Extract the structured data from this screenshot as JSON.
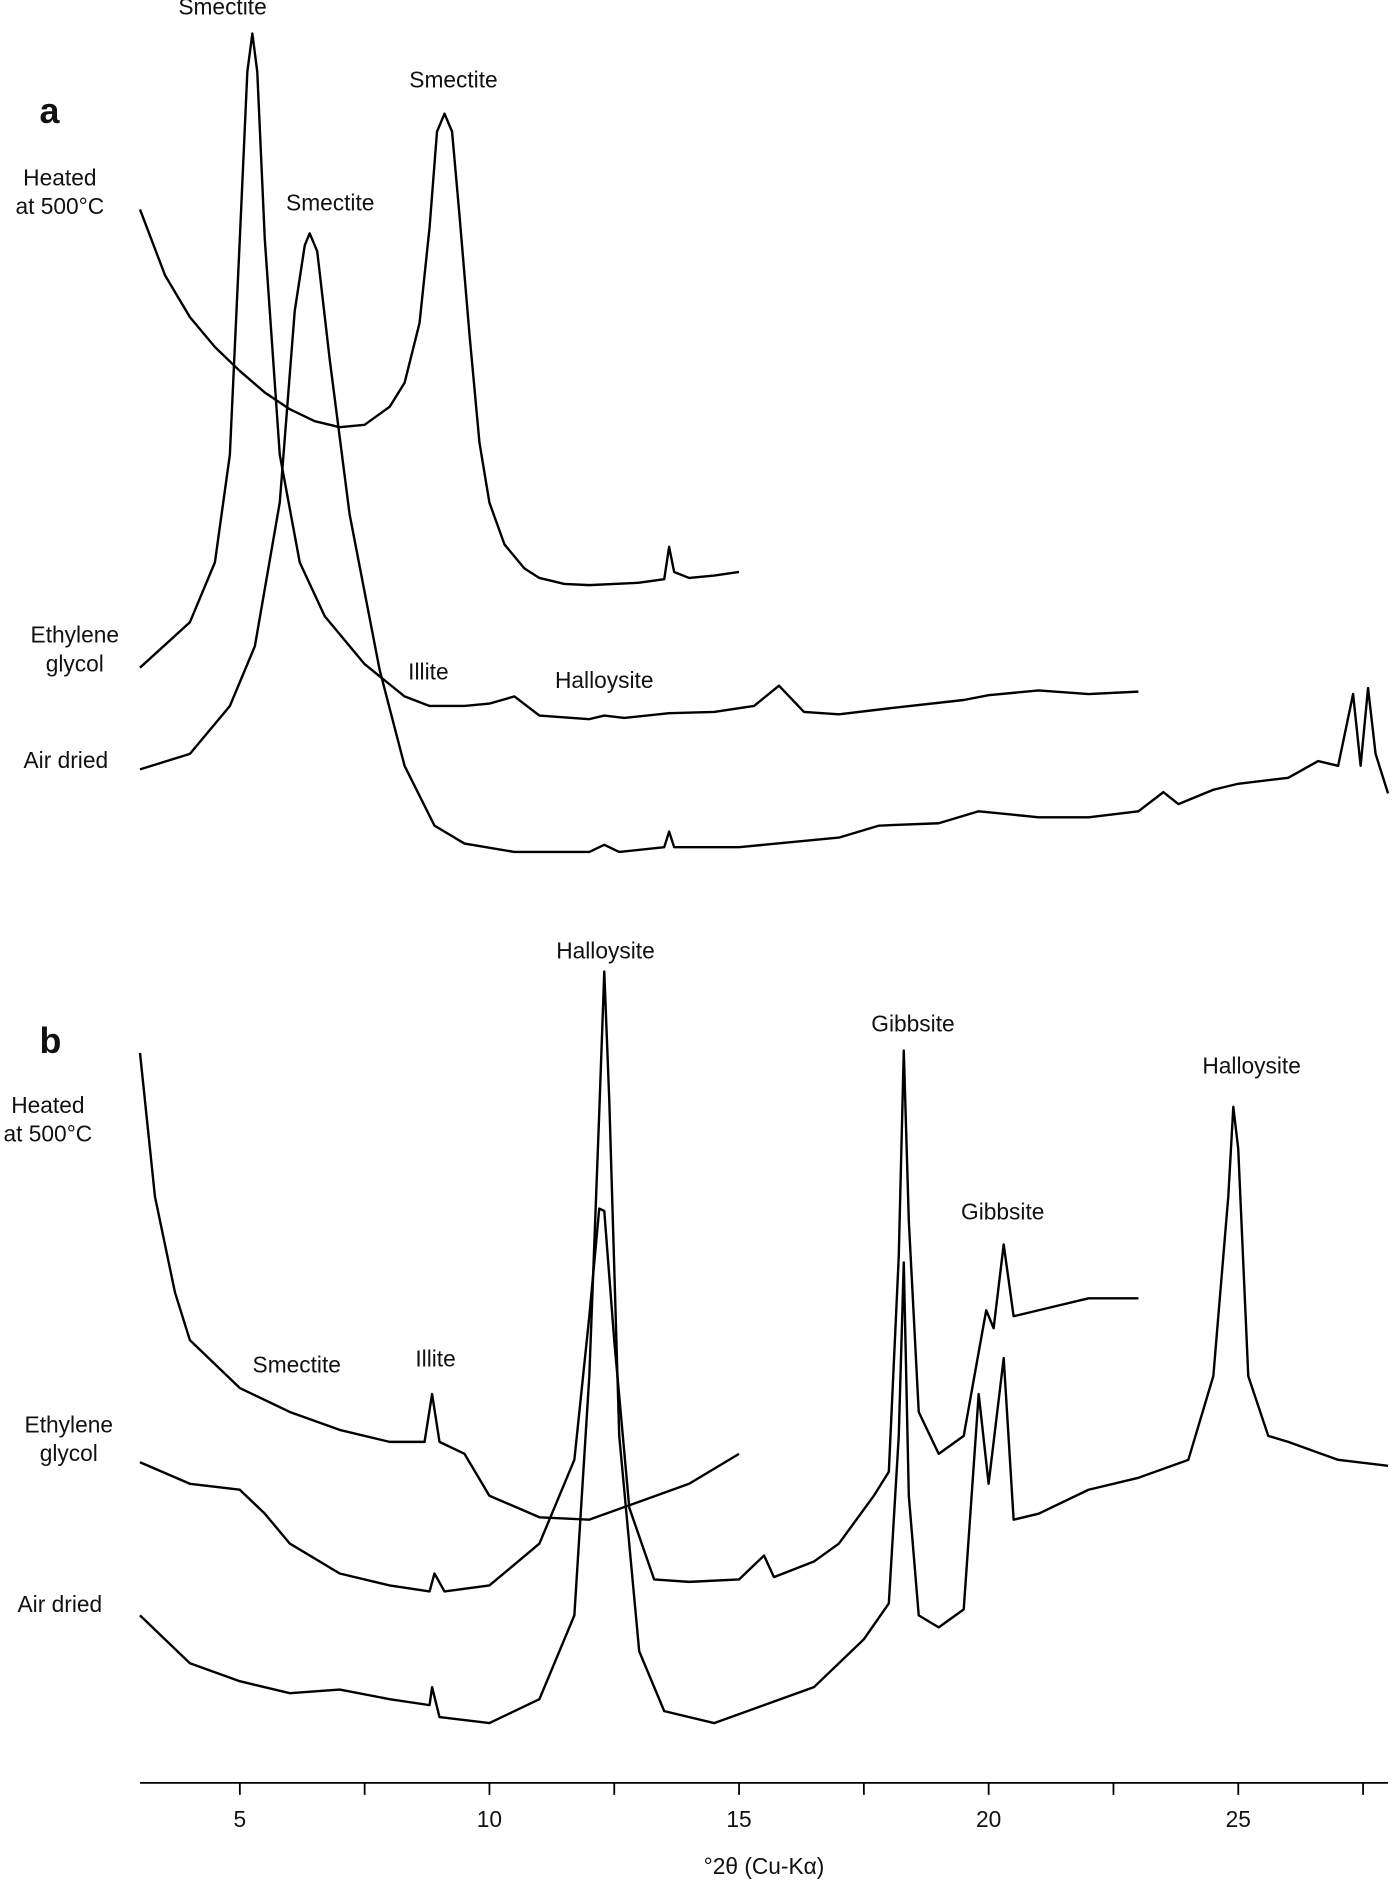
{
  "chart_data": [
    {
      "type": "line",
      "panel": "a",
      "xlim": [
        3,
        28
      ],
      "ylim": [
        0,
        700
      ],
      "annotations": [
        "Smectite",
        "Smectite",
        "Smectite",
        "Illite",
        "Halloysite"
      ],
      "series": [
        {
          "name": "Heated at 500°C",
          "color": "#000000",
          "x": [
            3,
            3.5,
            4,
            4.5,
            5,
            5.5,
            6,
            6.5,
            7,
            7.5,
            8,
            8.3,
            8.6,
            8.8,
            8.95,
            9.1,
            9.25,
            9.4,
            9.6,
            9.8,
            10,
            10.3,
            10.7,
            11,
            11.5,
            12,
            12.5,
            13,
            13.5,
            13.6,
            13.7,
            14,
            14.5,
            15
          ],
          "values": [
            545,
            490,
            455,
            430,
            410,
            392,
            378,
            368,
            363,
            365,
            380,
            400,
            450,
            530,
            610,
            625,
            610,
            540,
            440,
            350,
            300,
            265,
            245,
            237,
            232,
            231,
            232,
            233,
            236,
            263,
            242,
            237,
            239,
            242
          ]
        },
        {
          "name": "Ethylene glycol",
          "color": "#000000",
          "x": [
            3,
            4,
            4.5,
            4.8,
            5.0,
            5.15,
            5.25,
            5.35,
            5.5,
            5.8,
            6.2,
            6.7,
            7.5,
            8.3,
            8.8,
            9.5,
            10,
            10.5,
            11,
            12,
            12.3,
            12.7,
            13.6,
            14.5,
            15.3,
            15.8,
            16.3,
            17,
            18,
            19.5,
            20,
            21,
            22,
            23
          ],
          "values": [
            162,
            200,
            250,
            340,
            520,
            660,
            692,
            660,
            520,
            340,
            250,
            205,
            165,
            138,
            130,
            130,
            132,
            138,
            122,
            119,
            122,
            120,
            124,
            125,
            130,
            147,
            125,
            123,
            128,
            135,
            139,
            143,
            140,
            142
          ]
        },
        {
          "name": "Air dried",
          "color": "#000000",
          "x": [
            3,
            4,
            4.8,
            5.3,
            5.8,
            6.1,
            6.3,
            6.4,
            6.55,
            6.8,
            7.2,
            7.8,
            8.3,
            8.9,
            9.5,
            10.5,
            12,
            12.3,
            12.6,
            13.5,
            13.6,
            13.7,
            15,
            17,
            17.8,
            19,
            19.8,
            21,
            22,
            23,
            23.5,
            23.8,
            24.5,
            25,
            26,
            26.6,
            27,
            27.3,
            27.45,
            27.6,
            27.75,
            28
          ],
          "values": [
            77,
            90,
            130,
            180,
            300,
            460,
            515,
            525,
            510,
            420,
            290,
            160,
            80,
            30,
            15,
            8,
            8,
            14,
            8,
            12,
            25,
            12,
            12,
            20,
            30,
            32,
            42,
            37,
            37,
            42,
            58,
            48,
            60,
            65,
            70,
            84,
            80,
            140,
            80,
            145,
            90,
            57
          ]
        }
      ]
    },
    {
      "type": "line",
      "panel": "b",
      "xlim": [
        3,
        28
      ],
      "ylim": [
        0,
        650
      ],
      "xticks": [
        5,
        10,
        15,
        20,
        25
      ],
      "minor_xticks": [
        7.5,
        12.5,
        17.5,
        22.5,
        27.5
      ],
      "xlabel": "°2θ (Cu-Kα)",
      "annotations": [
        "Halloysite",
        "Gibbsite",
        "Halloysite",
        "Gibbsite",
        "Smectite",
        "Illite"
      ],
      "series": [
        {
          "name": "Heated at 500°C",
          "color": "#000000",
          "x": [
            3,
            3.3,
            3.7,
            4,
            4.5,
            5,
            6,
            7,
            8,
            8.7,
            8.85,
            9,
            9.5,
            10,
            11,
            12,
            13,
            14,
            15
          ],
          "values": [
            570,
            450,
            370,
            330,
            310,
            290,
            270,
            255,
            245,
            245,
            285,
            245,
            235,
            200,
            182,
            180,
            195,
            210,
            235
          ]
        },
        {
          "name": "Ethylene glycol",
          "color": "#000000",
          "x": [
            3,
            4,
            5,
            5.5,
            6,
            7,
            8,
            8.8,
            8.9,
            9.1,
            10,
            11,
            11.7,
            12.0,
            12.2,
            12.3,
            12.5,
            12.8,
            13.3,
            14,
            15,
            15.5,
            15.7,
            16.5,
            17,
            17.7,
            18,
            18.2,
            18.3,
            18.4,
            18.6,
            19,
            19.5,
            19.8,
            19.95,
            20.1,
            20.3,
            20.5,
            21,
            22,
            23
          ],
          "values": [
            228,
            210,
            205,
            185,
            160,
            135,
            125,
            120,
            135,
            120,
            125,
            160,
            230,
            350,
            440,
            438,
            330,
            190,
            130,
            128,
            130,
            150,
            132,
            145,
            160,
            200,
            220,
            400,
            572,
            430,
            270,
            235,
            250,
            320,
            355,
            340,
            410,
            350,
            355,
            365,
            365
          ]
        },
        {
          "name": "Air dried",
          "color": "#000000",
          "x": [
            3,
            4,
            5,
            6,
            7,
            8,
            8.8,
            8.85,
            9,
            10,
            11,
            11.7,
            12.0,
            12.2,
            12.3,
            12.4,
            12.6,
            13,
            13.5,
            14.5,
            15.5,
            16.5,
            17.5,
            18,
            18.2,
            18.3,
            18.4,
            18.6,
            19,
            19.5,
            19.8,
            20,
            20.3,
            20.5,
            21,
            22,
            23,
            24,
            24.5,
            24.8,
            24.9,
            25.0,
            25.2,
            25.6,
            26,
            27,
            28
          ],
          "values": [
            100,
            60,
            45,
            35,
            38,
            30,
            25,
            40,
            15,
            10,
            30,
            100,
            300,
            520,
            638,
            530,
            250,
            70,
            20,
            10,
            25,
            40,
            80,
            110,
            250,
            395,
            200,
            100,
            90,
            105,
            285,
            210,
            315,
            180,
            185,
            205,
            215,
            230,
            300,
            450,
            525,
            490,
            300,
            250,
            245,
            230,
            225
          ]
        }
      ]
    }
  ]
}
